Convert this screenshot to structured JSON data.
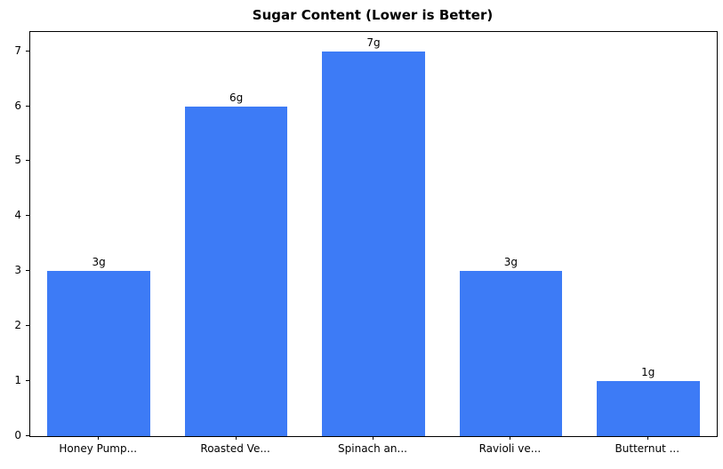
{
  "chart_data": {
    "type": "bar",
    "title": "Sugar Content (Lower is Better)",
    "categories": [
      "Honey Pump...",
      "Roasted Ve...",
      "Spinach an...",
      "Ravioli ve...",
      "Butternut ..."
    ],
    "values": [
      3,
      6,
      7,
      3,
      1
    ],
    "value_labels": [
      "3g",
      "6g",
      "7g",
      "3g",
      "1g"
    ],
    "yticks": [
      0,
      1,
      2,
      3,
      4,
      5,
      6,
      7
    ],
    "ylim": [
      0,
      7.35
    ],
    "xlabel": "",
    "ylabel": "",
    "bar_color": "#3d7bf6",
    "axis_color": "#000000",
    "background_color": "#ffffff",
    "grid": false,
    "legend_position": "none",
    "bar_width_fraction": 0.75
  }
}
